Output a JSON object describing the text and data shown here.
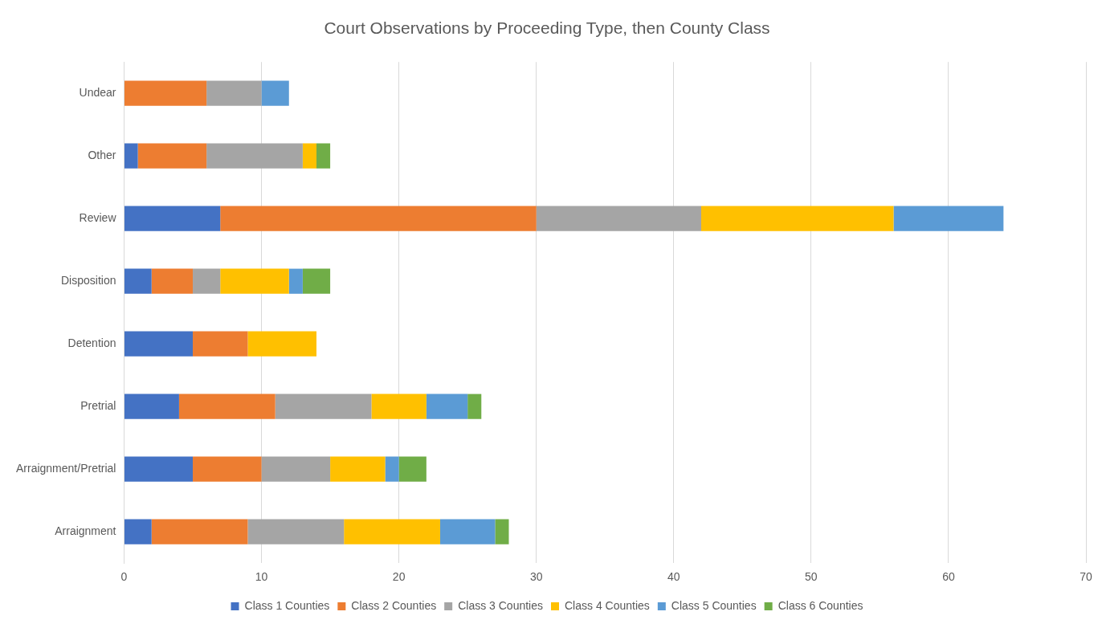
{
  "chart_data": {
    "type": "bar",
    "orientation": "horizontal",
    "stacked": true,
    "title": "Court Observations by Proceeding Type, then County Class",
    "categories": [
      "Undear",
      "Other",
      "Review",
      "Disposition",
      "Detention",
      "Pretrial",
      "Arraignment/Pretrial",
      "Arraignment"
    ],
    "series": [
      {
        "name": "Class 1 Counties",
        "color": "#4472c4",
        "values": [
          0,
          1,
          7,
          2,
          5,
          4,
          5,
          2
        ]
      },
      {
        "name": "Class 2 Counties",
        "color": "#ed7d31",
        "values": [
          6,
          5,
          23,
          3,
          4,
          7,
          5,
          7
        ]
      },
      {
        "name": "Class 3 Counties",
        "color": "#a5a5a5",
        "values": [
          4,
          7,
          12,
          2,
          0,
          7,
          5,
          7
        ]
      },
      {
        "name": "Class 4 Counties",
        "color": "#ffc000",
        "values": [
          0,
          1,
          14,
          5,
          5,
          4,
          4,
          7
        ]
      },
      {
        "name": "Class 5 Counties",
        "color": "#5b9bd5",
        "values": [
          2,
          0,
          8,
          1,
          0,
          3,
          1,
          4
        ]
      },
      {
        "name": "Class 6 Counties",
        "color": "#70ad47",
        "values": [
          0,
          1,
          0,
          2,
          0,
          1,
          2,
          1
        ]
      }
    ],
    "xlim": [
      0,
      70
    ],
    "xticks": [
      0,
      10,
      20,
      30,
      40,
      50,
      60,
      70
    ],
    "grid": "x",
    "legend": "bottom"
  }
}
